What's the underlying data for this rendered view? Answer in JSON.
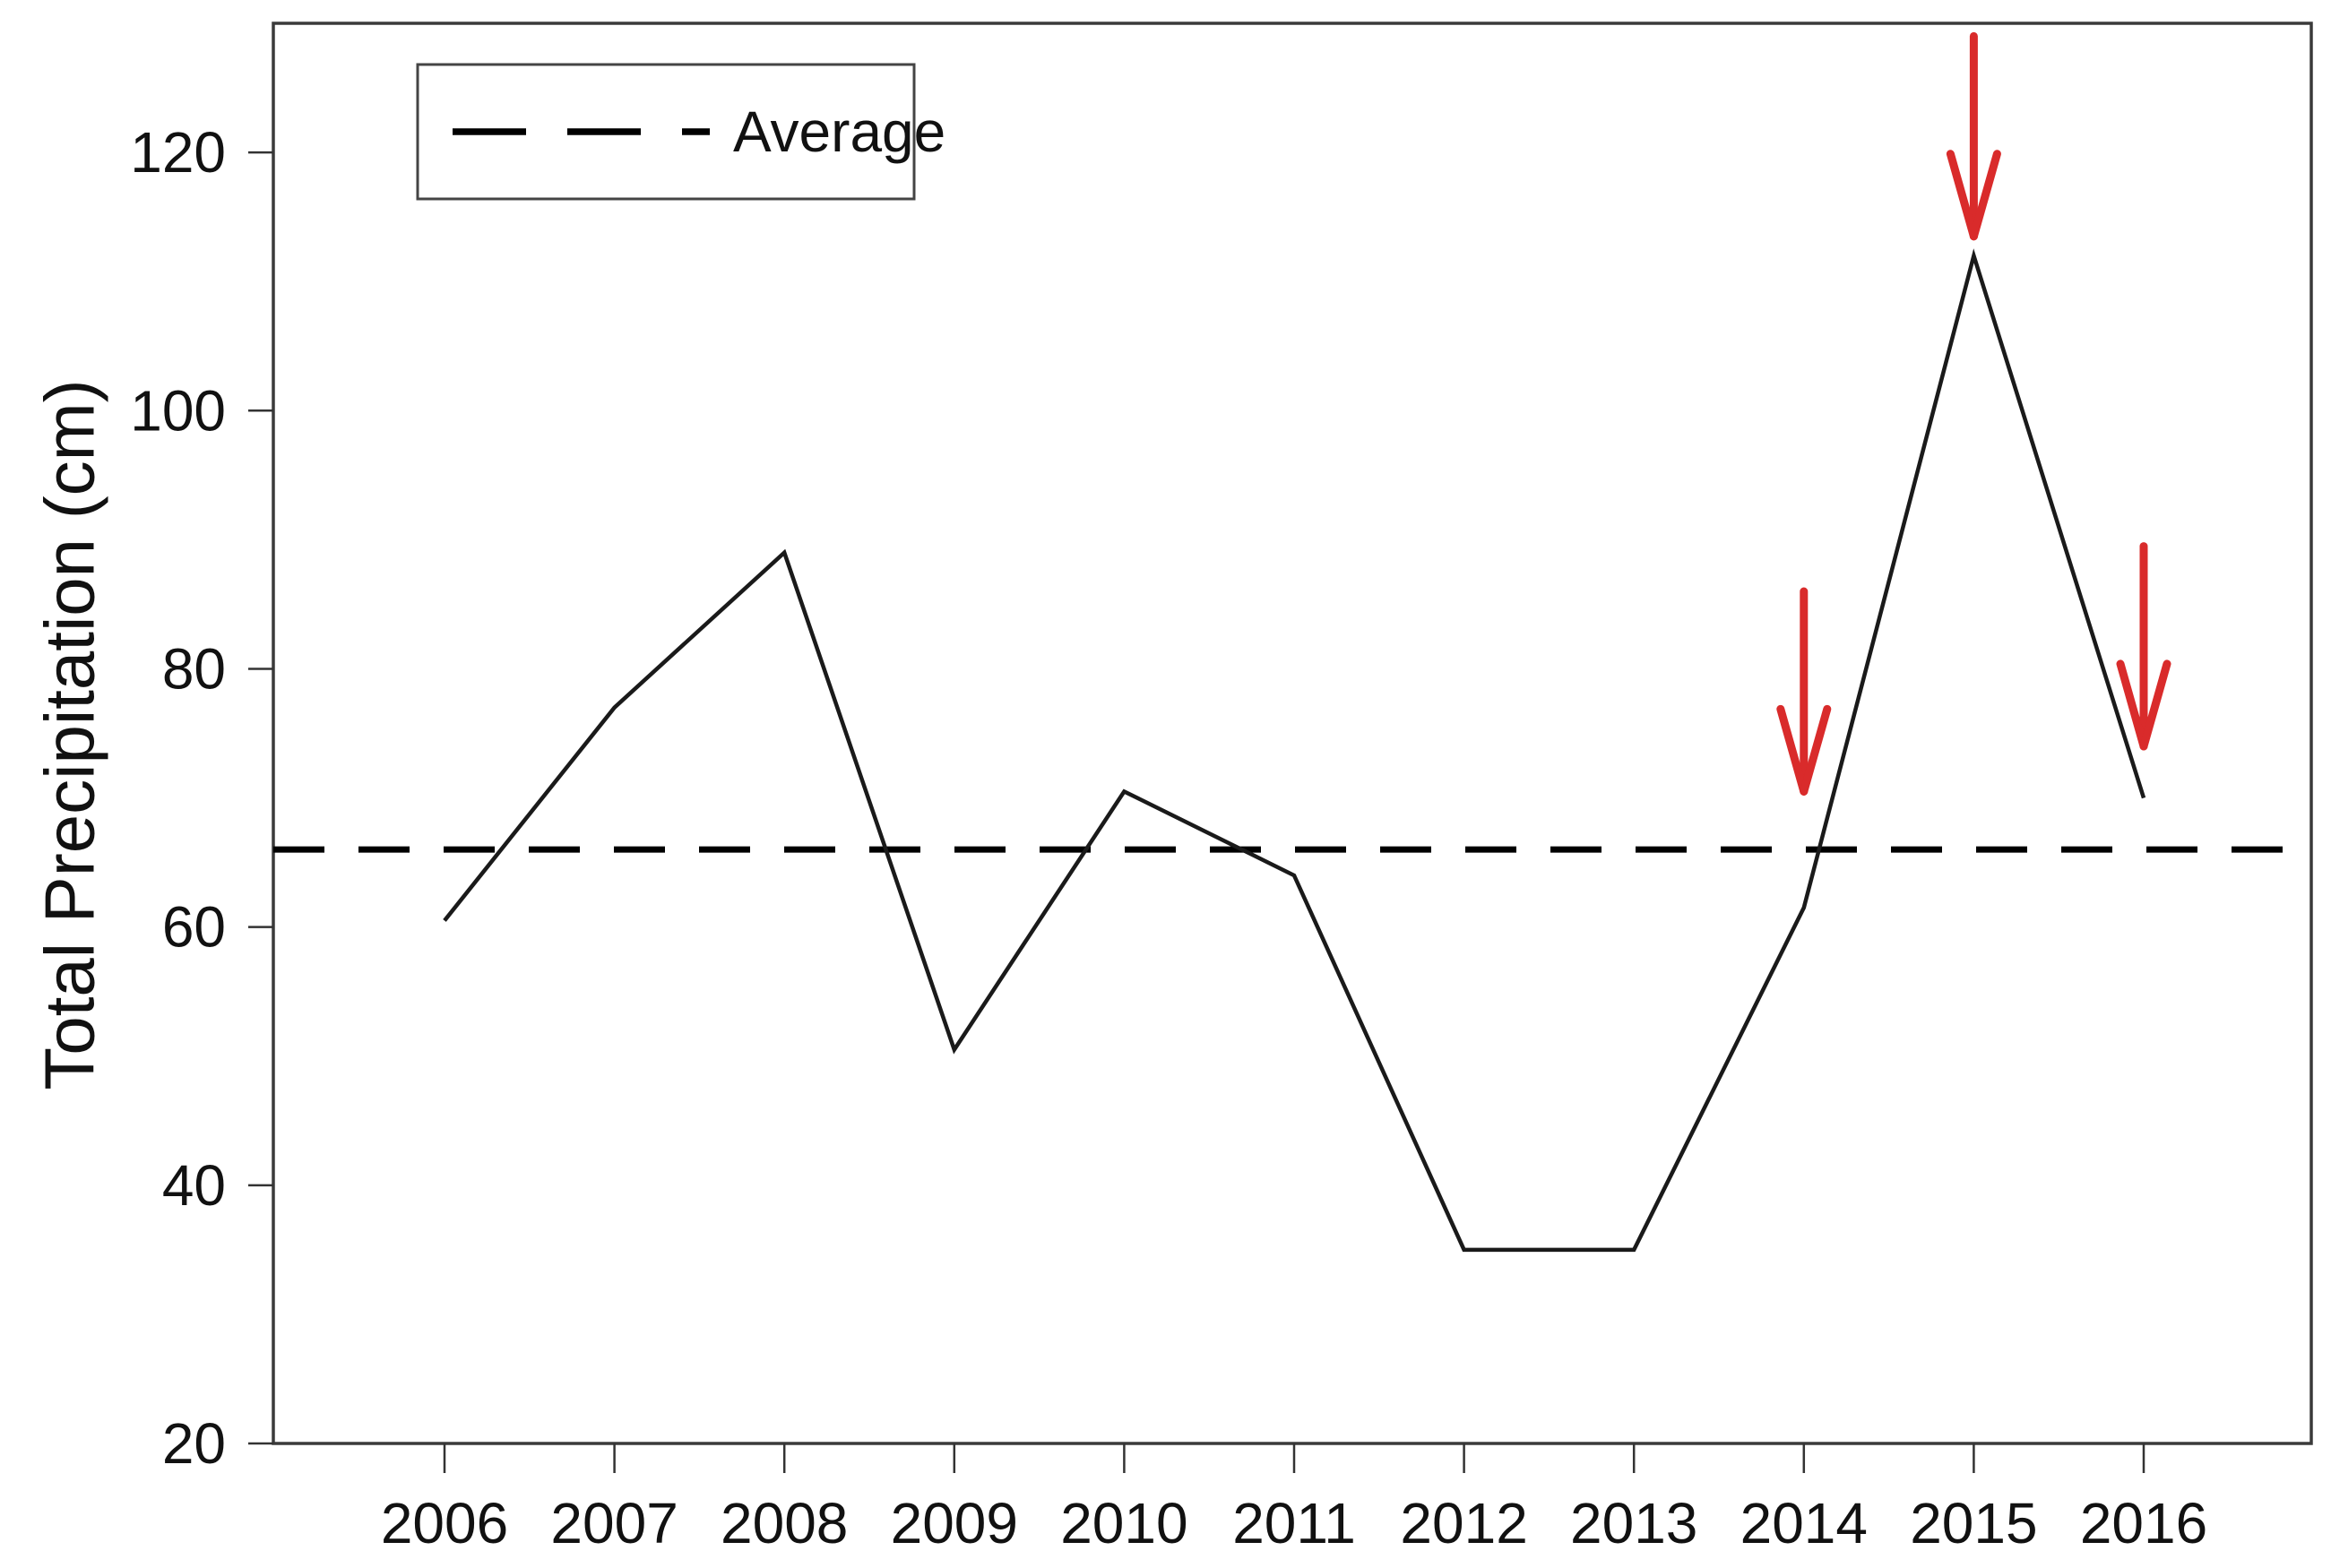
{
  "chart_data": {
    "type": "line",
    "title": "",
    "xlabel": "",
    "ylabel": "Total Precipitation (cm)",
    "categories": [
      "2006",
      "2007",
      "2008",
      "2009",
      "2010",
      "2011",
      "2012",
      "2013",
      "2014",
      "2015",
      "2016"
    ],
    "series": [
      {
        "name": "Total Precipitation",
        "values": [
          60.5,
          77,
          89,
          50.5,
          70.5,
          64,
          35,
          35,
          61.5,
          112,
          70
        ]
      }
    ],
    "average_line": {
      "label": "Average",
      "value": 66,
      "style": "dashed"
    },
    "yticks": [
      20,
      40,
      60,
      80,
      100,
      120
    ],
    "ylim": [
      20,
      130
    ],
    "grid": false,
    "legend_position": "top-left",
    "annotations": {
      "arrows": [
        {
          "year": "2014",
          "from_value": 86,
          "to_value": 70.5,
          "direction": "down"
        },
        {
          "year": "2015",
          "from_value": 129,
          "to_value": 113.5,
          "direction": "down"
        },
        {
          "year": "2016",
          "from_value": 89.5,
          "to_value": 74,
          "direction": "down"
        }
      ]
    }
  },
  "legend": {
    "label": "Average"
  },
  "colors": {
    "background": "#ffffff",
    "data_line": "#1a1a1a",
    "average_line": "#000000",
    "plot_border": "#3a3a3a",
    "tick": "#333333",
    "arrow": "#d92b2b"
  }
}
